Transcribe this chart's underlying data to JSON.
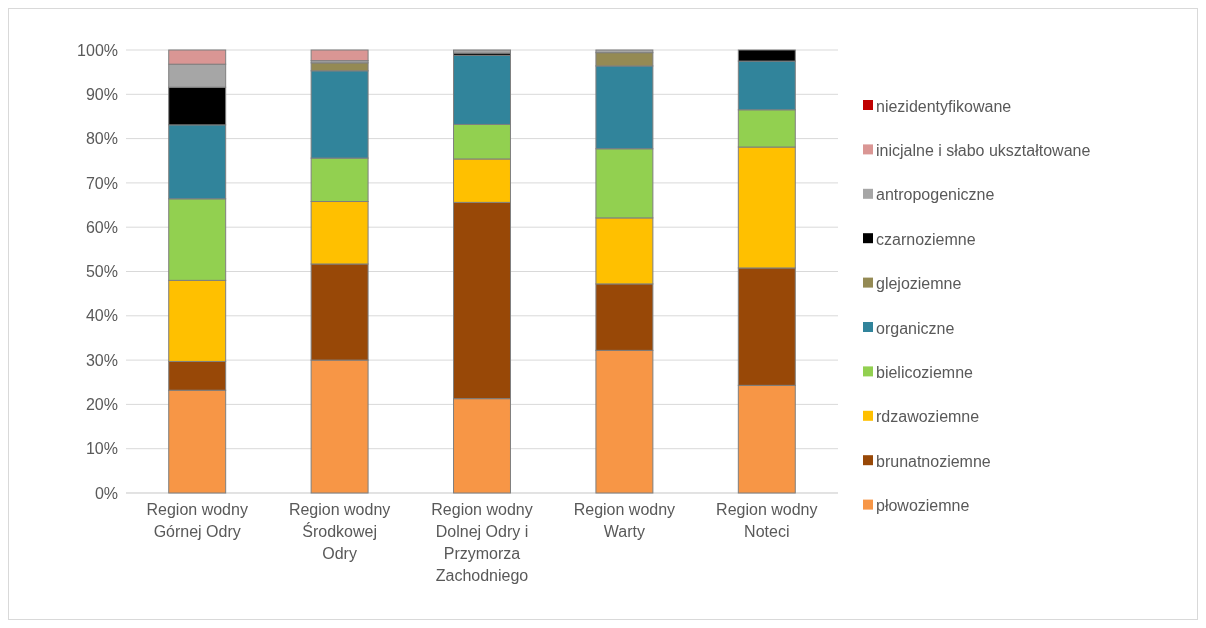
{
  "chart_data": {
    "type": "bar",
    "stacked": true,
    "categories": [
      "Region wodny Górnej Odry",
      "Region wodny Środkowej Odry",
      "Region wodny Dolnej Odry i Przymorza Zachodniego",
      "Region wodny Warty",
      "Region wodny Noteci"
    ],
    "series": [
      {
        "name": "płowoziemne",
        "color": "#f79646",
        "values": [
          23.2,
          30.0,
          21.3,
          32.2,
          24.3
        ]
      },
      {
        "name": "brunatnoziemne",
        "color": "#984807",
        "values": [
          6.5,
          21.7,
          44.3,
          15.0,
          26.5
        ]
      },
      {
        "name": "rdzawoziemne",
        "color": "#ffc000",
        "values": [
          18.3,
          14.1,
          9.8,
          14.9,
          27.3
        ]
      },
      {
        "name": "bielicoziemne",
        "color": "#92d050",
        "values": [
          18.4,
          9.8,
          7.8,
          15.6,
          8.4
        ]
      },
      {
        "name": "organiczne",
        "color": "#31849b",
        "values": [
          16.7,
          19.7,
          15.6,
          18.7,
          11.0
        ]
      },
      {
        "name": "glejoziemne",
        "color": "#948a54",
        "values": [
          0,
          1.8,
          0,
          3.0,
          0
        ]
      },
      {
        "name": "czarnoziemne",
        "color": "#000000",
        "values": [
          8.5,
          0,
          0.5,
          0,
          2.5
        ]
      },
      {
        "name": "antropogeniczne",
        "color": "#a6a6a6",
        "values": [
          5.2,
          0.5,
          0.7,
          0.6,
          0
        ]
      },
      {
        "name": "inicjalne i słabo ukształtowane",
        "color": "#da9694",
        "values": [
          3.2,
          2.4,
          0,
          0,
          0
        ]
      },
      {
        "name": "niezidentyfikowane",
        "color": "#c00000",
        "values": [
          0,
          0,
          0,
          0,
          0
        ]
      }
    ],
    "ylim": [
      0,
      100
    ],
    "yticks": [
      {
        "value": 0,
        "label": "0%"
      },
      {
        "value": 10,
        "label": "10%"
      },
      {
        "value": 20,
        "label": "20%"
      },
      {
        "value": 30,
        "label": "30%"
      },
      {
        "value": 40,
        "label": "40%"
      },
      {
        "value": 50,
        "label": "50%"
      },
      {
        "value": 60,
        "label": "60%"
      },
      {
        "value": 70,
        "label": "70%"
      },
      {
        "value": 80,
        "label": "80%"
      },
      {
        "value": 90,
        "label": "90%"
      },
      {
        "value": 100,
        "label": "100%"
      }
    ],
    "grid": "y",
    "legend": "right"
  }
}
